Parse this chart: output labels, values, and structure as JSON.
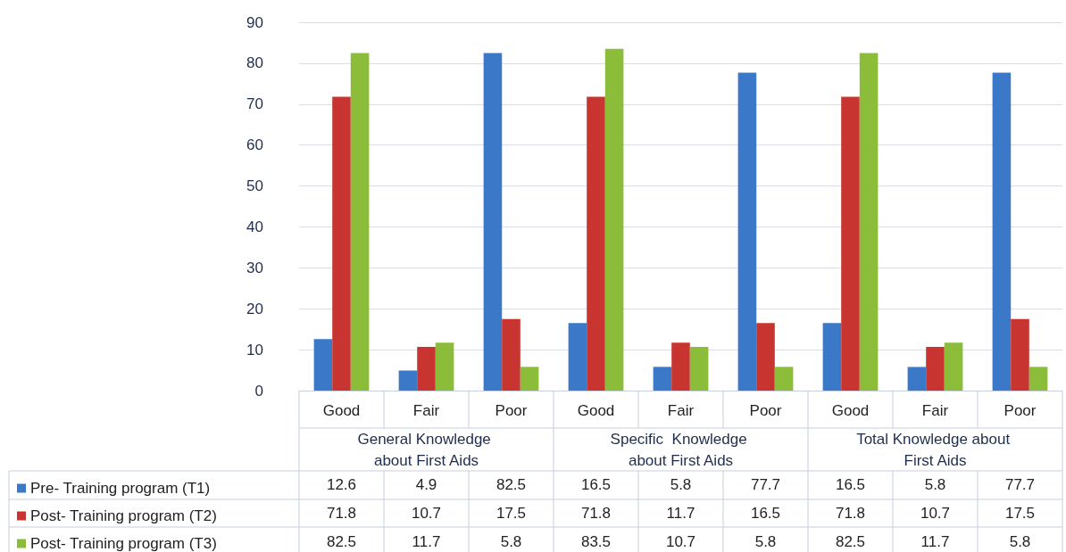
{
  "chart_data": {
    "type": "bar",
    "categories": [
      "Good",
      "Fair",
      "Poor",
      "Good",
      "Fair",
      "Poor",
      "Good",
      "Fair",
      "Poor"
    ],
    "annotations": [
      "General Knowledge about First Aids",
      "Specific  Knowledge about First Aids",
      "Total Knowledge about First Aids"
    ],
    "series": [
      {
        "name": "Pre- Training program (T1)",
        "color": "#3b78c8",
        "values": [
          12.6,
          4.9,
          82.5,
          16.5,
          5.8,
          77.7,
          16.5,
          5.8,
          77.7
        ]
      },
      {
        "name": "Post- Training program (T2)",
        "color": "#c8342f",
        "values": [
          71.8,
          10.7,
          17.5,
          71.8,
          11.7,
          16.5,
          71.8,
          10.7,
          17.5
        ]
      },
      {
        "name": "Post- Training program (T3)",
        "color": "#8cbd3a",
        "values": [
          82.5,
          11.7,
          5.8,
          83.5,
          10.7,
          5.8,
          82.5,
          11.7,
          5.8
        ]
      }
    ],
    "ylim": [
      0,
      90
    ],
    "yticks": [
      0,
      10,
      20,
      30,
      40,
      50,
      60,
      70,
      80,
      90
    ],
    "grid": "y",
    "legend": "bottom left",
    "data_labels": true
  }
}
